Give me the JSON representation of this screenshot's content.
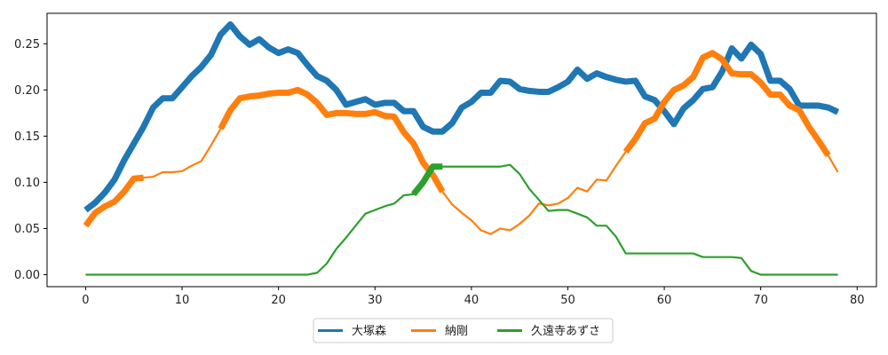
{
  "chart_data": {
    "type": "line",
    "title": "",
    "xlabel": "",
    "ylabel": "",
    "xlim": [
      -4,
      82
    ],
    "ylim": [
      -0.013,
      0.283
    ],
    "xticks": [
      0,
      10,
      20,
      30,
      40,
      50,
      60,
      70,
      80
    ],
    "yticks": [
      0.0,
      0.05,
      0.1,
      0.15,
      0.2,
      0.25
    ],
    "x": [
      0,
      1,
      2,
      3,
      4,
      5,
      6,
      7,
      8,
      9,
      10,
      11,
      12,
      13,
      14,
      15,
      16,
      17,
      18,
      19,
      20,
      21,
      22,
      23,
      24,
      25,
      26,
      27,
      28,
      29,
      30,
      31,
      32,
      33,
      34,
      35,
      36,
      37,
      38,
      39,
      40,
      41,
      42,
      43,
      44,
      45,
      46,
      47,
      48,
      49,
      50,
      51,
      52,
      53,
      54,
      55,
      56,
      57,
      58,
      59,
      60,
      61,
      62,
      63,
      64,
      65,
      66,
      67,
      68,
      69,
      70,
      71,
      72,
      73,
      74,
      75,
      76,
      77,
      78
    ],
    "legend": {
      "position": "bottom-center",
      "columns": 3
    },
    "grid": false,
    "series": [
      {
        "name": "大塚森",
        "color": "#1f77b4",
        "values": [
          0.07,
          0.078,
          0.089,
          0.103,
          0.124,
          0.142,
          0.16,
          0.181,
          0.191,
          0.191,
          0.203,
          0.215,
          0.225,
          0.238,
          0.26,
          0.271,
          0.258,
          0.249,
          0.255,
          0.246,
          0.24,
          0.244,
          0.24,
          0.227,
          0.215,
          0.21,
          0.2,
          0.184,
          0.187,
          0.19,
          0.184,
          0.186,
          0.186,
          0.177,
          0.177,
          0.16,
          0.155,
          0.155,
          0.164,
          0.181,
          0.187,
          0.197,
          0.197,
          0.21,
          0.209,
          0.201,
          0.199,
          0.198,
          0.198,
          0.203,
          0.209,
          0.222,
          0.212,
          0.218,
          0.214,
          0.211,
          0.209,
          0.21,
          0.193,
          0.189,
          0.177,
          0.163,
          0.18,
          0.189,
          0.201,
          0.203,
          0.22,
          0.245,
          0.234,
          0.249,
          0.239,
          0.21,
          0.21,
          0.201,
          0.183,
          0.183,
          0.183,
          0.181,
          0.176
        ],
        "emphasis": [
          [
            0,
            78,
            "thick"
          ]
        ]
      },
      {
        "name": "納剛",
        "color": "#ff7f0e",
        "values": [
          0.053,
          0.067,
          0.074,
          0.079,
          0.09,
          0.104,
          0.105,
          0.106,
          0.111,
          0.111,
          0.112,
          0.118,
          0.123,
          0.14,
          0.158,
          0.178,
          0.191,
          0.193,
          0.194,
          0.196,
          0.197,
          0.197,
          0.2,
          0.195,
          0.186,
          0.173,
          0.175,
          0.175,
          0.174,
          0.174,
          0.176,
          0.172,
          0.171,
          0.154,
          0.142,
          0.121,
          0.108,
          0.09,
          0.076,
          0.067,
          0.059,
          0.048,
          0.044,
          0.05,
          0.048,
          0.055,
          0.064,
          0.077,
          0.075,
          0.077,
          0.083,
          0.094,
          0.09,
          0.103,
          0.102,
          0.118,
          0.133,
          0.147,
          0.164,
          0.169,
          0.187,
          0.2,
          0.205,
          0.214,
          0.235,
          0.24,
          0.233,
          0.218,
          0.217,
          0.217,
          0.208,
          0.195,
          0.195,
          0.183,
          0.178,
          0.16,
          0.145,
          0.129,
          0.111
        ],
        "emphasis": [
          [
            0,
            6,
            "thick"
          ],
          [
            14,
            37,
            "thick"
          ],
          [
            56,
            77,
            "thick"
          ]
        ]
      },
      {
        "name": "久遠寺あずさ",
        "color": "#2ca02c",
        "values": [
          0,
          0,
          0,
          0,
          0,
          0,
          0,
          0,
          0,
          0,
          0,
          0,
          0,
          0,
          0,
          0,
          0,
          0,
          0,
          0,
          0,
          0,
          0,
          0,
          0.002,
          0.012,
          0.028,
          0.04,
          0.053,
          0.066,
          0.07,
          0.074,
          0.077,
          0.086,
          0.087,
          0.1,
          0.117,
          0.117,
          0.117,
          0.117,
          0.117,
          0.117,
          0.117,
          0.117,
          0.119,
          0.109,
          0.093,
          0.081,
          0.069,
          0.07,
          0.07,
          0.066,
          0.062,
          0.053,
          0.053,
          0.041,
          0.023,
          0.023,
          0.023,
          0.023,
          0.023,
          0.023,
          0.023,
          0.023,
          0.019,
          0.019,
          0.019,
          0.019,
          0.018,
          0.004,
          0,
          0,
          0,
          0,
          0,
          0,
          0,
          0,
          0
        ],
        "emphasis": [
          [
            34,
            37,
            "thick"
          ]
        ]
      }
    ]
  }
}
